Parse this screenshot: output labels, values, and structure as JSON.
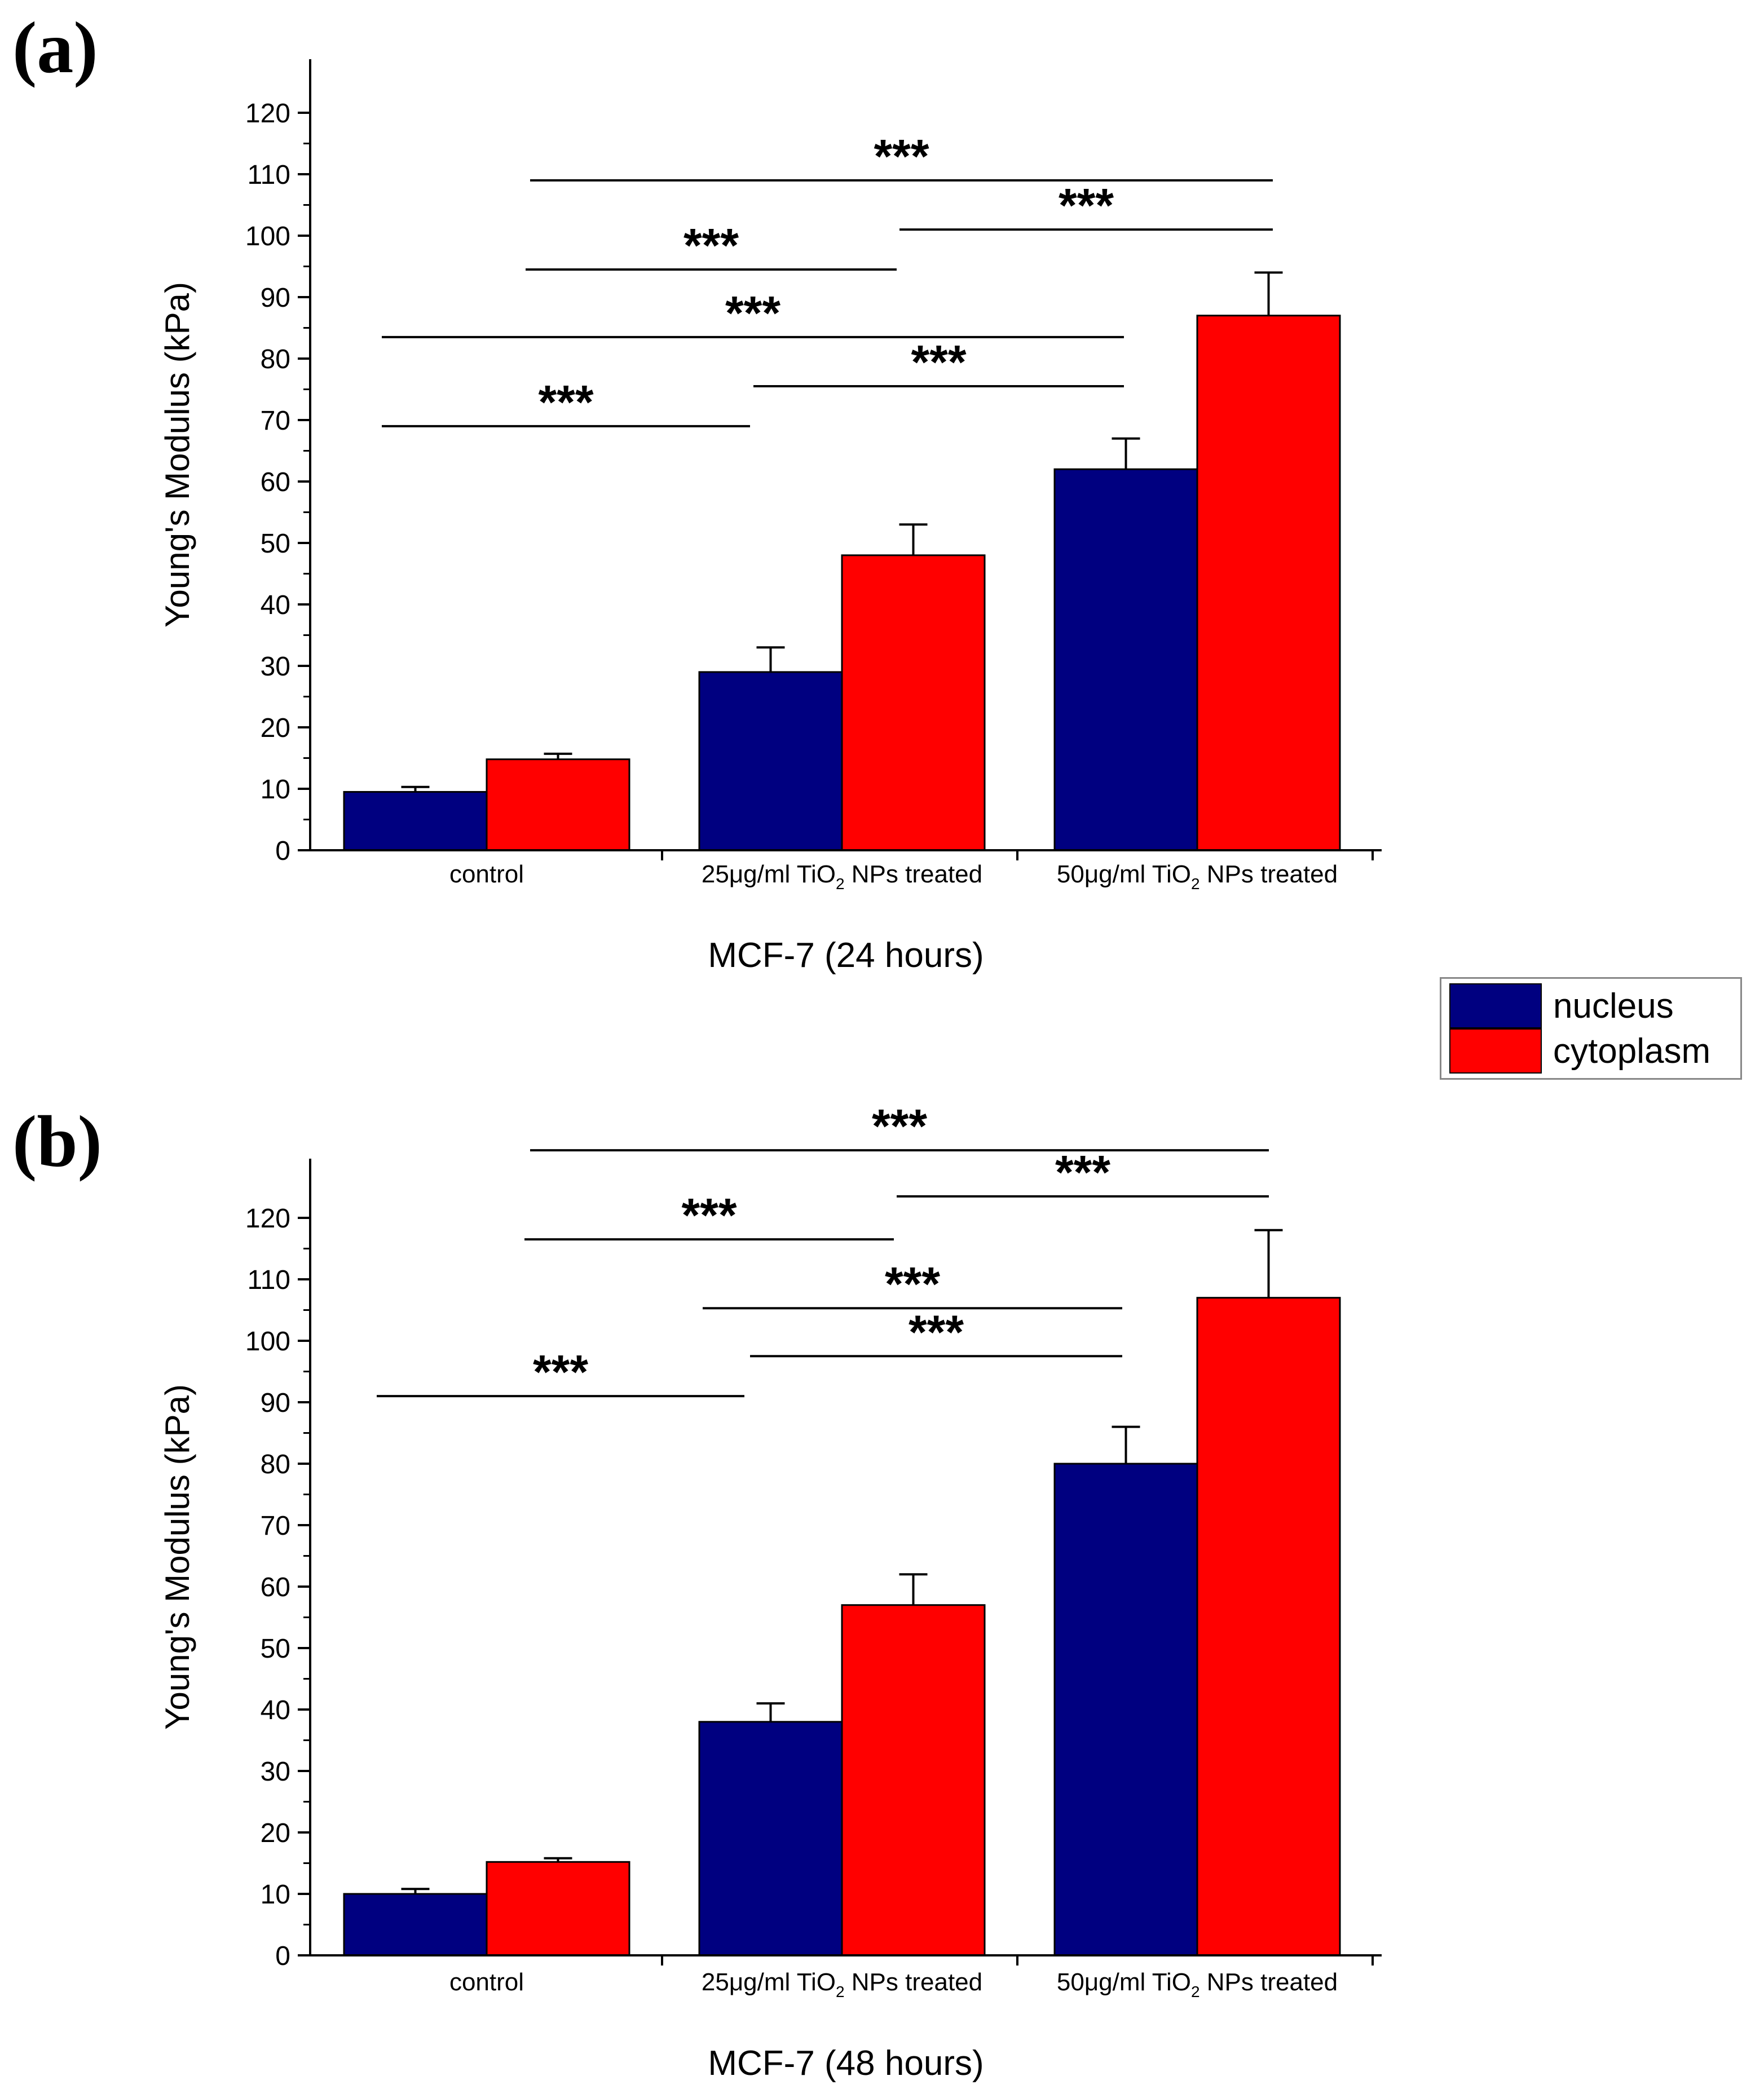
{
  "panels": {
    "a": {
      "label": "(a)"
    },
    "b": {
      "label": "(b)"
    }
  },
  "legend": {
    "nucleus": "nucleus",
    "cytoplasm": "cytoplasm"
  },
  "chart_data": [
    {
      "type": "bar",
      "panel": "a",
      "title": "",
      "xlabel": "MCF-7 (24 hours)",
      "ylabel": "Young's Modulus (kPa)",
      "ylim": [
        0,
        128
      ],
      "yticks": [
        0,
        10,
        20,
        30,
        40,
        50,
        60,
        70,
        80,
        90,
        100,
        110,
        120
      ],
      "categories": [
        {
          "pre": "control",
          "sub": "",
          "post": ""
        },
        {
          "pre": "25μg/ml TiO",
          "sub": "2",
          "post": " NPs treated"
        },
        {
          "pre": "50μg/ml TiO",
          "sub": "2",
          "post": " NPs treated"
        }
      ],
      "series": [
        {
          "name": "nucleus",
          "color": "#000080",
          "values": [
            9.5,
            29,
            62
          ],
          "errors": [
            0.8,
            4,
            5
          ]
        },
        {
          "name": "cytoplasm",
          "color": "#ff0000",
          "values": [
            14.8,
            48,
            87
          ],
          "errors": [
            0.9,
            5,
            7
          ]
        }
      ],
      "annotations": [
        {
          "text": "***",
          "from": "control / nucleus",
          "to": "25μg/ml / nucleus",
          "y": 69
        },
        {
          "text": "***",
          "from": "25μg/ml / nucleus",
          "to": "50μg/ml / nucleus",
          "y": 75.5
        },
        {
          "text": "***",
          "from": "control / nucleus",
          "to": "50μg/ml / nucleus",
          "y": 83.5
        },
        {
          "text": "***",
          "from": "control / cytoplasm",
          "to": "25μg/ml / cytoplasm",
          "y": 94.5
        },
        {
          "text": "***",
          "from": "25μg/ml / cytoplasm",
          "to": "50μg/ml / cytoplasm",
          "y": 101
        },
        {
          "text": "***",
          "from": "control / cytoplasm",
          "to": "50μg/ml / cytoplasm",
          "y": 109
        }
      ]
    },
    {
      "type": "bar",
      "panel": "b",
      "title": "",
      "xlabel": "MCF-7 (48 hours)",
      "ylabel": "Young's Modulus (kPa)",
      "ylim": [
        0,
        128
      ],
      "yticks": [
        0,
        10,
        20,
        30,
        40,
        50,
        60,
        70,
        80,
        90,
        100,
        110,
        120
      ],
      "categories": [
        {
          "pre": "control",
          "sub": "",
          "post": ""
        },
        {
          "pre": "25μg/ml TiO",
          "sub": "2",
          "post": " NPs treated"
        },
        {
          "pre": "50μg/ml TiO",
          "sub": "2",
          "post": " NPs treated"
        }
      ],
      "series": [
        {
          "name": "nucleus",
          "color": "#000080",
          "values": [
            10,
            38,
            80
          ],
          "errors": [
            0.8,
            3,
            6
          ]
        },
        {
          "name": "cytoplasm",
          "color": "#ff0000",
          "values": [
            15.2,
            57,
            107
          ],
          "errors": [
            0.6,
            5,
            11
          ]
        }
      ],
      "annotations": [
        {
          "text": "***",
          "from": "control / nucleus",
          "to": "25μg/ml / nucleus",
          "y": 91
        },
        {
          "text": "***",
          "from": "25μg/ml / nucleus",
          "to": "50μg/ml / nucleus",
          "y": 97.5
        },
        {
          "text": "***",
          "from": "25μg/ml / nucleus",
          "to": "50μg/ml / nucleus",
          "y": 105.3
        },
        {
          "text": "***",
          "from": "control / cytoplasm",
          "to": "25μg/ml / cytoplasm",
          "y": 116.5
        },
        {
          "text": "***",
          "from": "25μg/ml / cytoplasm",
          "to": "50μg/ml / cytoplasm",
          "y": 123.5
        },
        {
          "text": "***",
          "from": "control / cytoplasm",
          "to": "50μg/ml / cytoplasm",
          "y": 131
        }
      ]
    }
  ]
}
